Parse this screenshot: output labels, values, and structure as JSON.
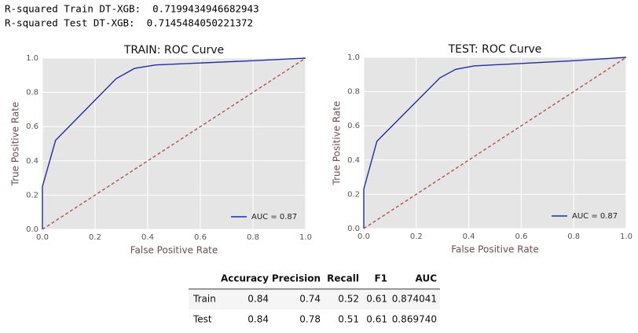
{
  "output_lines": [
    "R-squared Train DT-XGB:  0.7199434946682943",
    "R-squared Test DT-XGB:  0.7145484050221372"
  ],
  "chart_data": [
    {
      "type": "line",
      "title": "TRAIN: ROC Curve",
      "x_label": "False Positive Rate",
      "y_label": "True Positive Rate",
      "xlim": [
        0,
        1
      ],
      "ylim": [
        0,
        1
      ],
      "xticks": [
        {
          "value": 0,
          "label": "0.0"
        },
        0.2,
        0.4,
        0.6,
        0.8,
        {
          "value": 1,
          "label": "1.0"
        }
      ],
      "yticks": [
        {
          "value": 0,
          "label": "0.0"
        },
        0.2,
        0.4,
        0.6,
        0.8,
        {
          "value": 1,
          "label": "1.0"
        }
      ],
      "grid": true,
      "legend": "lower right",
      "series": [
        {
          "name": "AUC = 0.87",
          "color": "#1f2fa0",
          "x": [
            0,
            0,
            0.05,
            0.28,
            0.35,
            0.43,
            0.8,
            1
          ],
          "values": [
            0,
            0.25,
            0.52,
            0.88,
            0.94,
            0.96,
            0.985,
            1
          ]
        },
        {
          "color": "#b05050",
          "dashed": true,
          "x": [
            0,
            1
          ],
          "values": [
            0,
            1
          ]
        }
      ]
    },
    {
      "type": "line",
      "title": "TEST: ROC Curve",
      "x_label": "False Positive Rate",
      "y_label": "True Positive Rate",
      "xlim": [
        0,
        1
      ],
      "ylim": [
        0,
        1
      ],
      "xticks": [
        {
          "value": 0,
          "label": "0.0"
        },
        0.2,
        0.4,
        0.6,
        0.8,
        {
          "value": 1,
          "label": "1.0"
        }
      ],
      "yticks": [
        {
          "value": 0,
          "label": "0.0"
        },
        0.2,
        0.4,
        0.6,
        0.8,
        {
          "value": 1,
          "label": "1.0"
        }
      ],
      "grid": true,
      "legend": "lower right",
      "series": [
        {
          "name": "AUC = 0.87",
          "color": "#1f2fa0",
          "x": [
            0,
            0,
            0.05,
            0.29,
            0.35,
            0.42,
            0.8,
            1
          ],
          "values": [
            0,
            0.23,
            0.51,
            0.88,
            0.93,
            0.95,
            0.98,
            1
          ]
        },
        {
          "color": "#b05050",
          "dashed": true,
          "x": [
            0,
            1
          ],
          "values": [
            0,
            1
          ]
        }
      ]
    }
  ],
  "table": {
    "columns": [
      "Accuracy",
      "Precision",
      "Recall",
      "F1",
      "AUC"
    ],
    "rows": [
      [
        "Train",
        "0.84",
        "0.74",
        "0.52",
        "0.61",
        "0.874041"
      ],
      [
        "Test",
        "0.84",
        "0.78",
        "0.51",
        "0.61",
        "0.869740"
      ]
    ]
  }
}
